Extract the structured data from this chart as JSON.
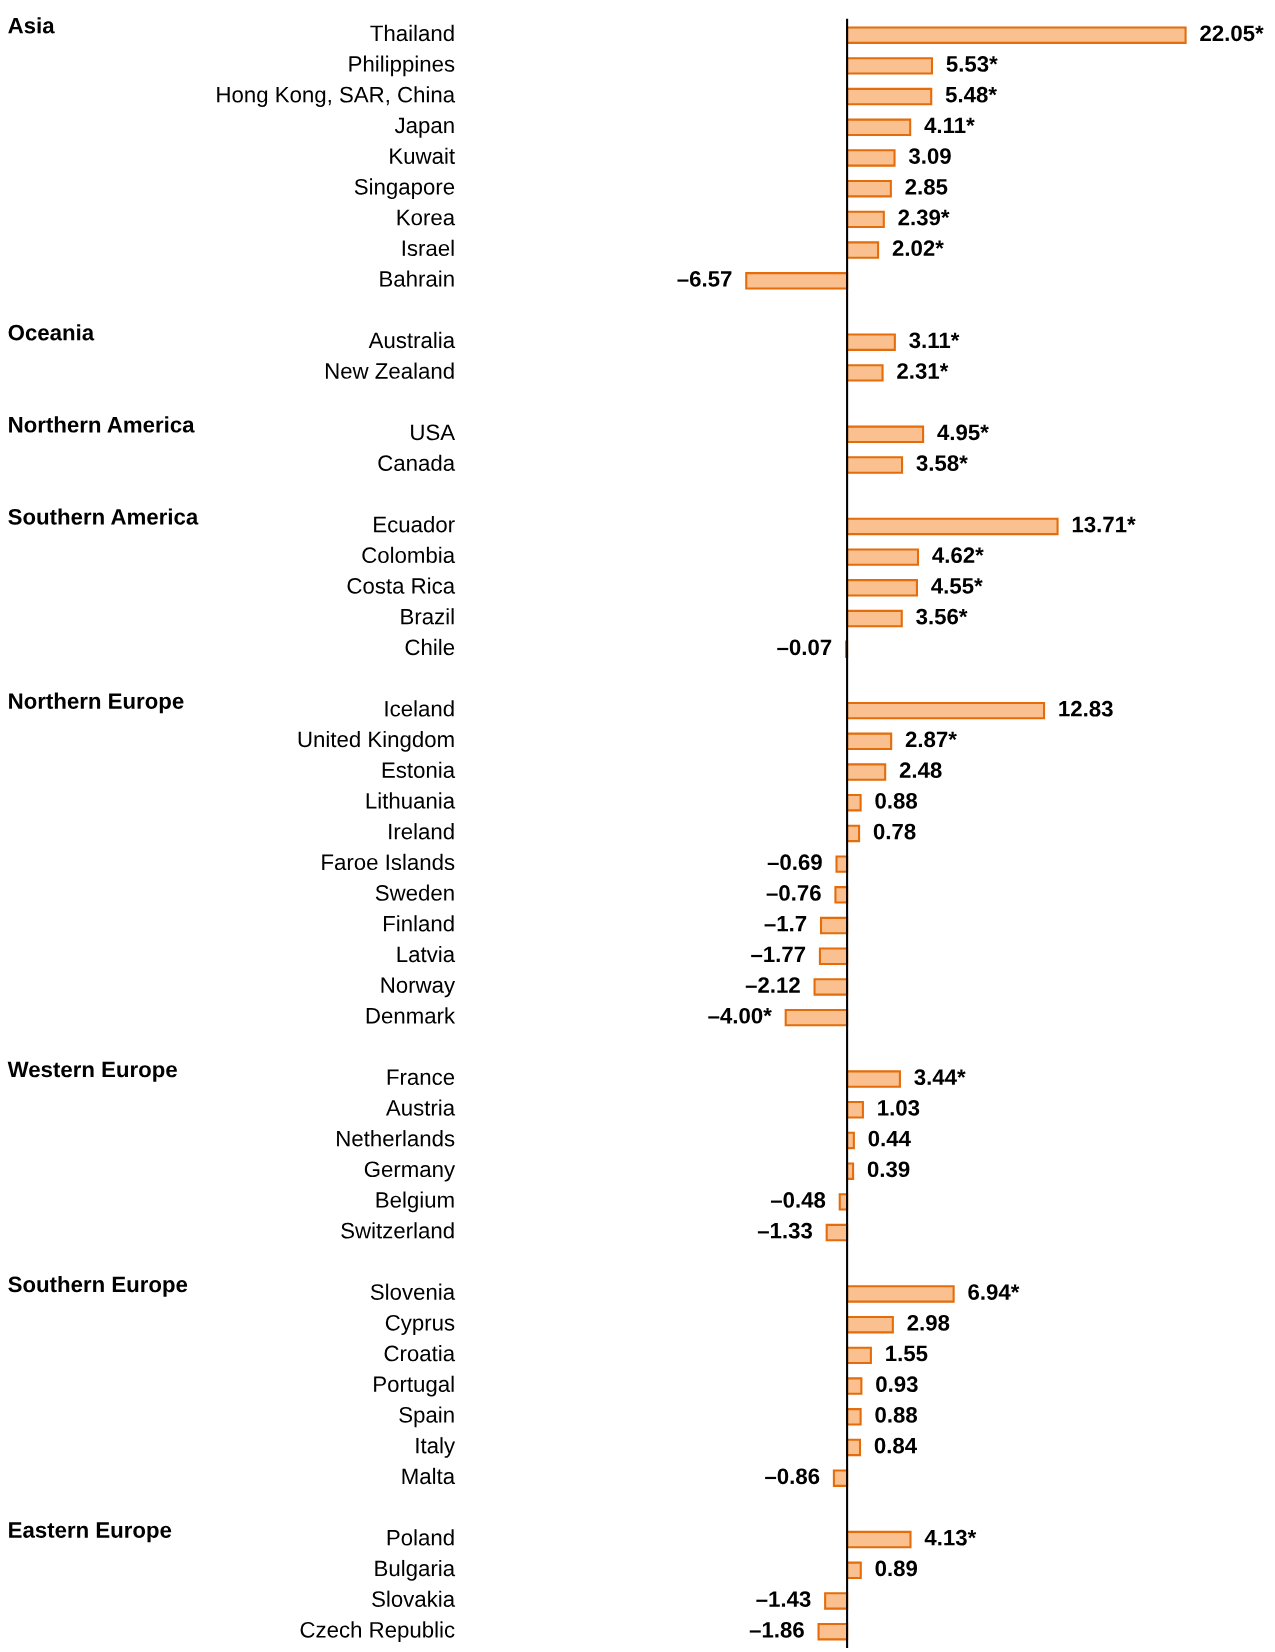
{
  "chart_data": {
    "type": "bar",
    "orientation": "horizontal",
    "color": "#fac090",
    "categories": [
      "Thailand",
      "Philippines",
      "Hong Kong, SAR, China",
      "Japan",
      "Kuwait",
      "Singapore",
      "Korea",
      "Israel",
      "Bahrain",
      null,
      "Australia",
      "New Zealand",
      null,
      "USA",
      "Canada",
      null,
      "Ecuador",
      "Colombia",
      "Costa Rica",
      "Brazil",
      "Chile",
      null,
      "Iceland",
      "United Kingdom",
      "Estonia",
      "Lithuania",
      "Ireland",
      "Faroe Islands",
      "Sweden",
      "Finland",
      "Latvia",
      "Norway",
      "Denmark",
      null,
      "France",
      "Austria",
      "Netherlands",
      "Germany",
      "Belgium",
      "Switzerland",
      null,
      "Slovenia",
      "Cyprus",
      "Croatia",
      "Portugal",
      "Spain",
      "Italy",
      "Malta",
      null,
      "Poland",
      "Bulgaria",
      "Slovakia",
      "Czech Republic"
    ],
    "values": [
      22.05,
      5.53,
      5.48,
      4.11,
      3.09,
      2.85,
      2.39,
      2.02,
      -6.57,
      null,
      3.11,
      2.31,
      null,
      4.95,
      3.58,
      null,
      13.71,
      4.62,
      4.55,
      3.56,
      -0.07,
      null,
      12.83,
      2.87,
      2.48,
      0.88,
      0.78,
      -0.69,
      -0.76,
      -1.7,
      -1.77,
      -2.12,
      -4.0,
      null,
      3.44,
      1.03,
      0.44,
      0.39,
      -0.48,
      -1.33,
      null,
      6.94,
      2.98,
      1.55,
      0.93,
      0.88,
      0.84,
      -0.86,
      null,
      4.13,
      0.89,
      -1.43,
      -1.86
    ],
    "value_labels": [
      "22.05*",
      "5.53*",
      "5.48*",
      "4.11*",
      "3.09",
      "2.85",
      "2.39*",
      "2.02*",
      "–6.57",
      null,
      "3.11*",
      "2.31*",
      null,
      "4.95*",
      "3.58*",
      null,
      "13.71*",
      "4.62*",
      "4.55*",
      "3.56*",
      "–0.07",
      null,
      "12.83",
      "2.87*",
      "2.48",
      "0.88",
      "0.78",
      "–0.69",
      "–0.76",
      "–1.7",
      "–1.77",
      "–2.12",
      "–4.00*",
      null,
      "3.44*",
      "1.03",
      "0.44",
      "0.39",
      "–0.48",
      "–1.33",
      null,
      "6.94*",
      "2.98",
      "1.55",
      "0.93",
      "0.88",
      "0.84",
      "–0.86",
      null,
      "4.13*",
      "0.89",
      "–1.43",
      "–1.86"
    ],
    "annotations": [
      "Asia",
      "Oceania",
      "Northern America",
      "Southern America",
      "Northern Europe",
      "Western Europe",
      "Southern Europe",
      "Eastern Europe"
    ]
  }
}
